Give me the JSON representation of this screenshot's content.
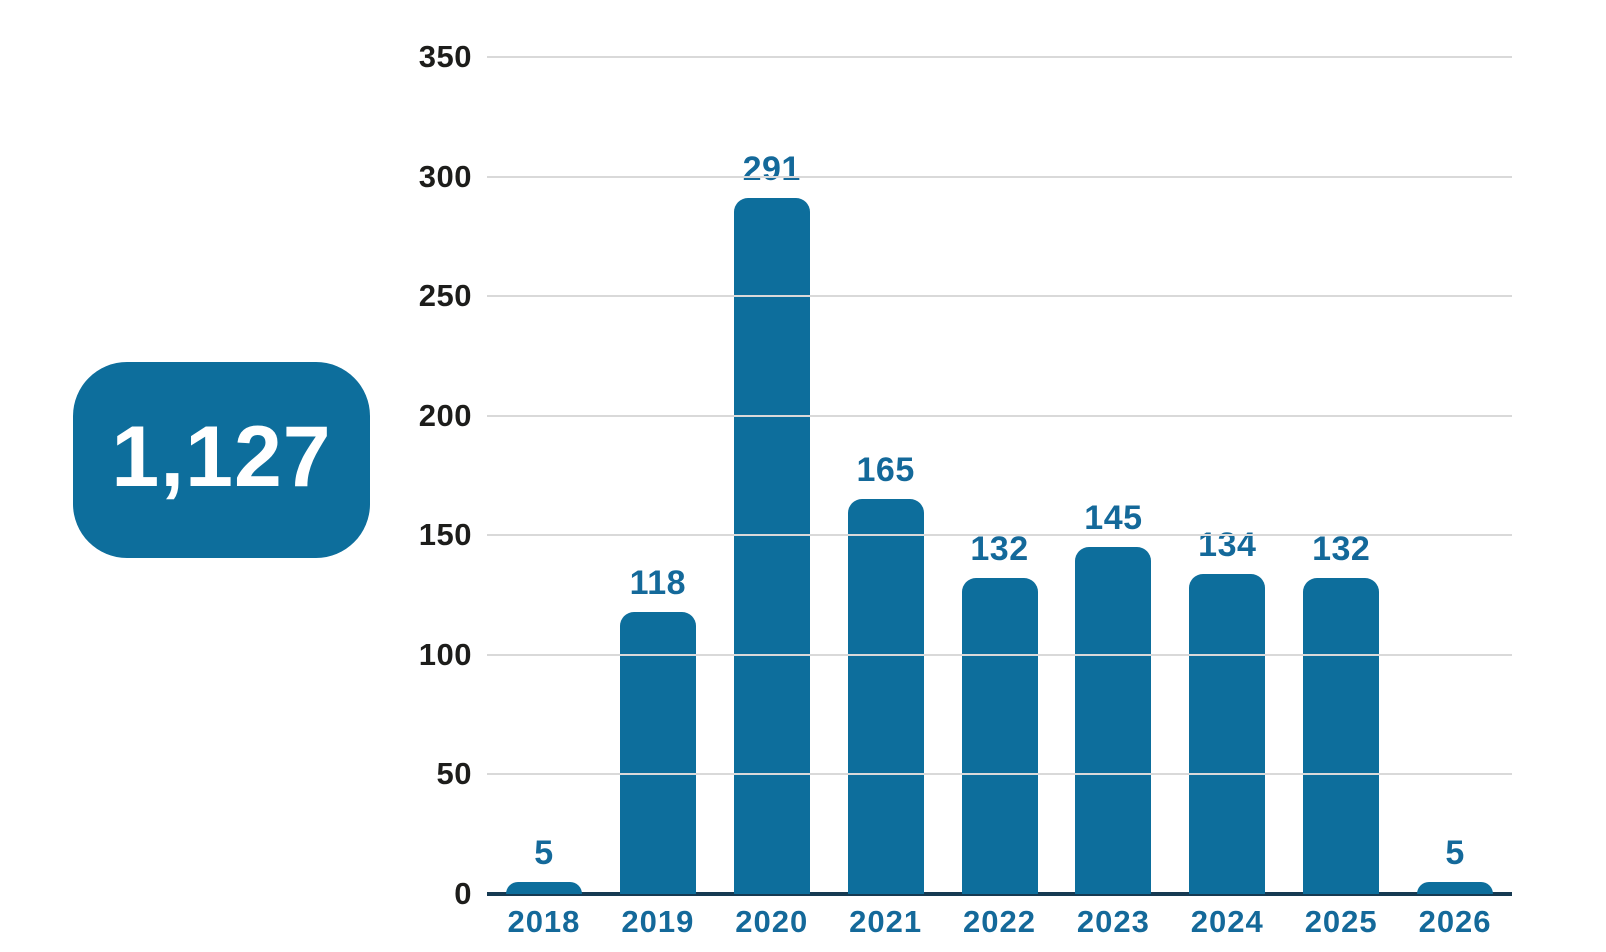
{
  "badge": {
    "total": "1,127"
  },
  "colors": {
    "accent_blue": "#0d6e9c",
    "label_blue": "#14699a",
    "ytick_dark": "#1d1d1b",
    "gridline_gray": "#d9d9d9",
    "axis_navy": "#163a52",
    "badge_text": "#ffffff",
    "background": "#ffffff"
  },
  "chart_data": {
    "type": "bar",
    "title": "",
    "xlabel": "",
    "ylabel": "",
    "categories": [
      "2018",
      "2019",
      "2020",
      "2021",
      "2022",
      "2023",
      "2024",
      "2025",
      "2026"
    ],
    "values": [
      5,
      118,
      291,
      165,
      132,
      145,
      134,
      132,
      5
    ],
    "value_labels": [
      "5",
      "118",
      "291",
      "165",
      "132",
      "145",
      "134",
      "132",
      "5"
    ],
    "ylim": [
      0,
      350
    ],
    "yticks": [
      0,
      50,
      100,
      150,
      200,
      250,
      300,
      350
    ],
    "grid": "horizontal-on",
    "legend": "none",
    "bar_corner": "rounded-top"
  }
}
